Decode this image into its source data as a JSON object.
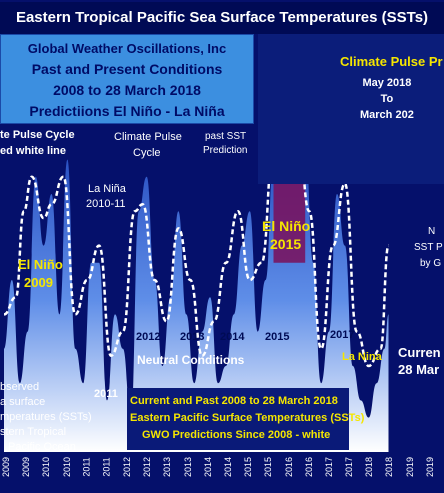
{
  "title": "Eastern Tropical Pacific Sea Surface Temperatures (SSTs)",
  "info_box": {
    "org": "Global  Weather Oscillations, Inc",
    "line1": "Past and Present Conditions",
    "line2": "2008 to 28 March 2018",
    "line3": "Predictiions El Niño - La Niña"
  },
  "climate_pulse": {
    "title": "Climate Pulse Pr",
    "dates": [
      "May 2018",
      "To",
      "March 202"
    ]
  },
  "labels": {
    "cycle_left_1": "te Pulse Cycle",
    "cycle_left_2": "ed white line",
    "cycle_mid_1": "Climate Pulse",
    "cycle_mid_2": "Cycle",
    "past_sst_1": "past SST",
    "past_sst_2": "Prediction",
    "la_nina_2010_1": "La Niña",
    "la_nina_2010_2": "2010-11",
    "el_nino_2009_1": "El Niño",
    "el_nino_2009_2": "2009",
    "el_nino_2015_1": "El Niño",
    "el_nino_2015_2": "2015",
    "neutral": "Neutral Conditions",
    "observed_1": "bserved",
    "observed_2": "a  surface",
    "observed_3": "mperatures (SSTs)",
    "observed_4": "stern Tropical",
    "observed_5": "Pacific Ocean",
    "yr_2011": "2011",
    "yr_2012": "2012",
    "yr_2013": "2013",
    "yr_2014": "2014",
    "yr_2015": "2015",
    "yr_2017": "2017",
    "la_nina_right": "La Nina",
    "current_1": "Curren",
    "current_2": "28 Mar",
    "right_ann_1": "N",
    "right_ann_2": "SST P",
    "right_ann_3": "by G",
    "bottom_1": "Current and Past  2008 to 28 March 2018",
    "bottom_2": "Eastern Pacific Surface Temperatures (SSTs)",
    "bottom_3": "GWO Predictions Since 2008 - white"
  },
  "colors": {
    "background": "#05106b",
    "fill_top": "#ffffff",
    "fill_bottom": "#3a6fd8",
    "el_nino_fill": "#7a0f5a",
    "prediction_line": "#ffffff",
    "highlight_text": "#f5e600"
  },
  "chart_data": {
    "type": "area",
    "x_tick_labels": [
      "2009",
      "2009",
      "2010",
      "2010",
      "2011",
      "2011",
      "2012",
      "2012",
      "2013",
      "2013",
      "2014",
      "2014",
      "2015",
      "2015",
      "2016",
      "2016",
      "2017",
      "2017",
      "2018",
      "2018",
      "2019",
      "2019"
    ],
    "observed": {
      "x": [
        2008.5,
        2008.7,
        2008.9,
        2009.1,
        2009.3,
        2009.5,
        2009.7,
        2009.9,
        2010.1,
        2010.3,
        2010.5,
        2010.7,
        2010.9,
        2011.1,
        2011.3,
        2011.5,
        2011.7,
        2011.9,
        2012.1,
        2012.3,
        2012.5,
        2012.7,
        2012.9,
        2013.1,
        2013.3,
        2013.5,
        2013.7,
        2013.9,
        2014.1,
        2014.3,
        2014.5,
        2014.7,
        2014.9,
        2015.1,
        2015.3,
        2015.5,
        2015.7,
        2015.9,
        2016.1,
        2016.3,
        2016.5,
        2016.7,
        2016.9,
        2017.1,
        2017.3,
        2017.5,
        2017.7,
        2017.9,
        2018.1,
        2018.2
      ],
      "y": [
        0.3,
        0.5,
        0.2,
        0.35,
        0.8,
        0.6,
        0.75,
        0.4,
        0.85,
        0.3,
        0.2,
        0.55,
        0.55,
        0.15,
        0.4,
        0.3,
        0.1,
        0.7,
        0.8,
        0.5,
        0.25,
        0.45,
        0.7,
        0.4,
        0.2,
        0.35,
        0.45,
        0.2,
        0.25,
        0.4,
        0.6,
        0.7,
        0.35,
        0.5,
        0.85,
        0.92,
        0.98,
        0.95,
        0.9,
        0.55,
        0.2,
        0.35,
        0.75,
        0.6,
        0.25,
        0.15,
        0.1,
        0.2,
        0.3,
        0.4
      ]
    },
    "prediction": {
      "x": [
        2008.5,
        2008.8,
        2009.0,
        2009.2,
        2009.5,
        2009.7,
        2010.0,
        2010.3,
        2010.6,
        2010.9,
        2011.2,
        2011.5,
        2011.8,
        2012.0,
        2012.3,
        2012.6,
        2012.9,
        2013.2,
        2013.5,
        2013.8,
        2014.1,
        2014.4,
        2014.7,
        2015.0,
        2015.3,
        2015.6,
        2015.9,
        2016.2,
        2016.5,
        2016.8,
        2017.1,
        2017.4,
        2017.7,
        2018.0,
        2018.2
      ],
      "y": [
        0.4,
        0.45,
        0.7,
        0.8,
        0.68,
        0.72,
        0.8,
        0.4,
        0.5,
        0.6,
        0.28,
        0.35,
        0.7,
        0.72,
        0.5,
        0.38,
        0.65,
        0.5,
        0.28,
        0.38,
        0.55,
        0.7,
        0.5,
        0.55,
        0.88,
        0.96,
        0.95,
        0.7,
        0.3,
        0.6,
        0.78,
        0.35,
        0.25,
        0.3,
        0.6
      ]
    }
  }
}
